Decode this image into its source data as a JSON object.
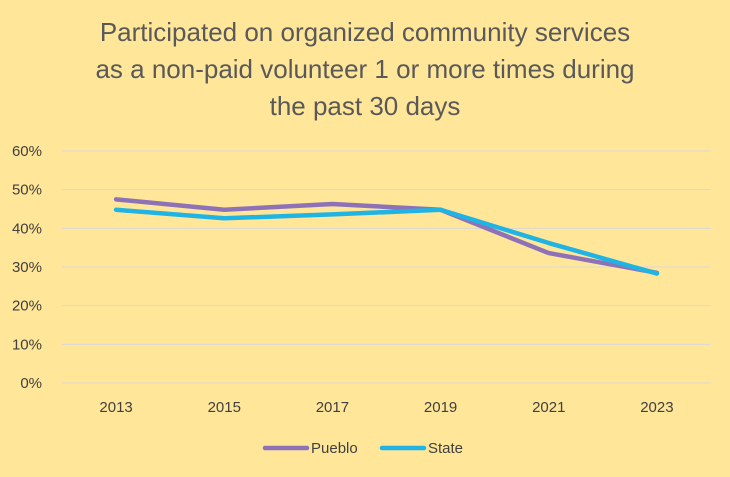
{
  "chart_data": {
    "type": "line",
    "title_lines": [
      "Participated on organized community services",
      "as a non-paid volunteer 1 or more times during",
      "the past 30 days"
    ],
    "categories": [
      "2013",
      "2015",
      "2017",
      "2019",
      "2021",
      "2023"
    ],
    "y_tick_labels": [
      "0%",
      "10%",
      "20%",
      "30%",
      "40%",
      "50%",
      "60%"
    ],
    "ylim": [
      0,
      60
    ],
    "y_unit": "%",
    "grid": true,
    "legend_position": "bottom",
    "series": [
      {
        "name": "Pueblo",
        "color": "#8E72B8",
        "values": [
          47.5,
          44.8,
          46.3,
          44.8,
          33.6,
          28.5
        ]
      },
      {
        "name": "State",
        "color": "#1FB4E3",
        "values": [
          44.8,
          42.6,
          43.6,
          44.8,
          36.2,
          28.3
        ]
      }
    ]
  }
}
